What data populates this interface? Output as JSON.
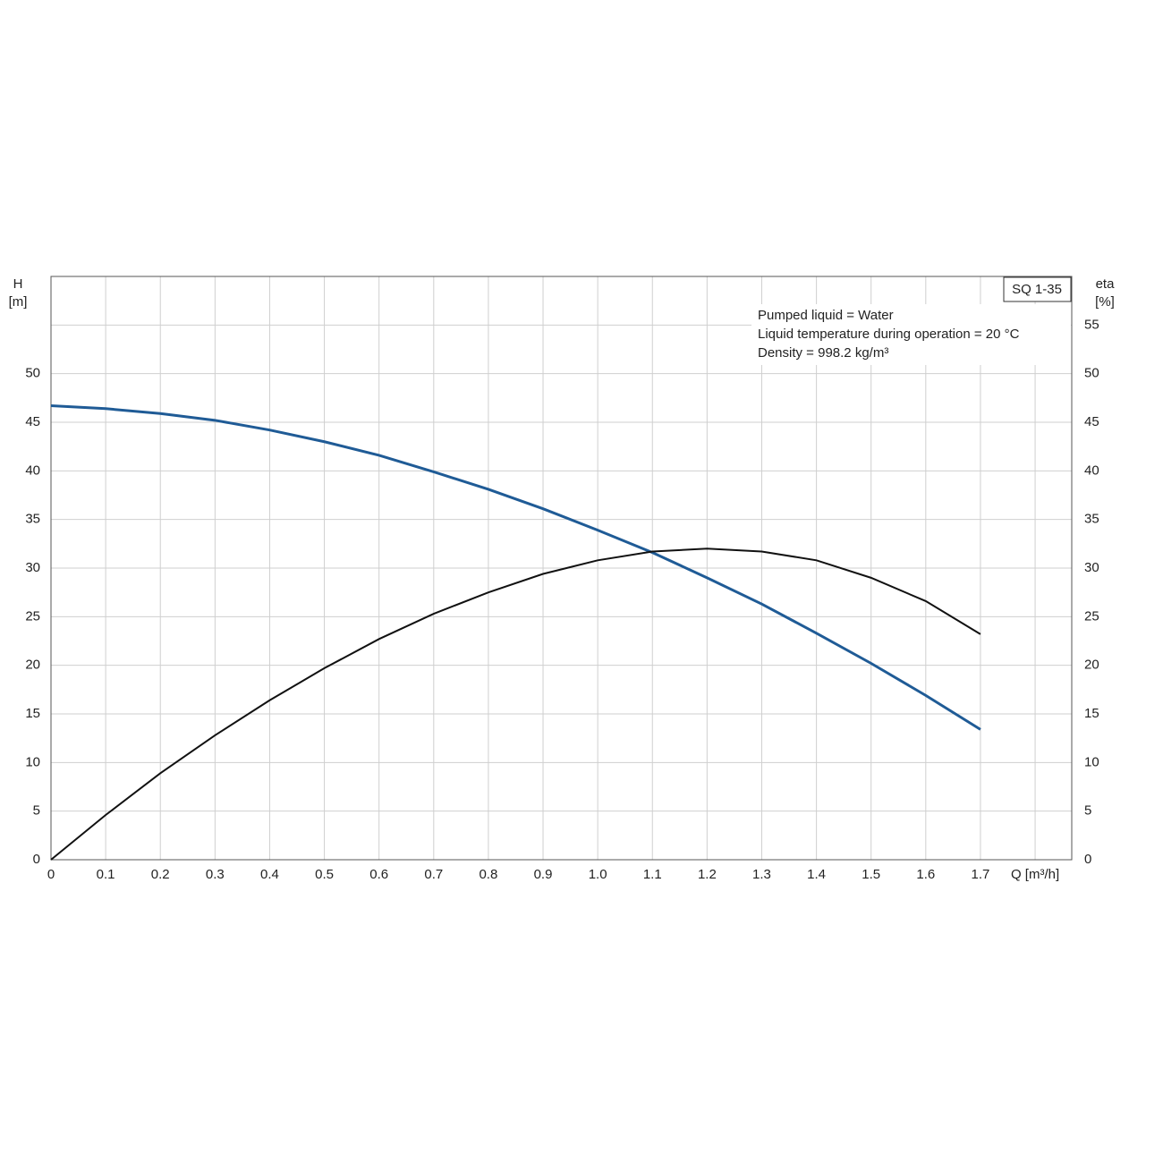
{
  "chart_data": {
    "type": "line",
    "y_label": "H",
    "y_unit": "[m]",
    "y2_label": "eta",
    "y2_unit": "[%]",
    "legend_box": "SQ 1-35",
    "annotations": [
      "Pumped liquid = Water",
      "Liquid temperature during operation = 20 °C",
      "Density = 998.2 kg/m³"
    ],
    "x": [
      0,
      0.1,
      0.2,
      0.3,
      0.4,
      0.5,
      0.6,
      0.7,
      0.8,
      0.9,
      1.0,
      1.1,
      1.2,
      1.3,
      1.4,
      1.5,
      1.6,
      1.7
    ],
    "series": [
      {
        "name": "H",
        "color": "#1f5b96",
        "axis": "y",
        "values": [
          46.7,
          46.4,
          45.9,
          45.2,
          44.2,
          43.0,
          41.6,
          39.9,
          38.1,
          36.1,
          33.9,
          31.6,
          29.0,
          26.3,
          23.3,
          20.2,
          16.9,
          13.4
        ]
      },
      {
        "name": "eta",
        "color": "#111111",
        "axis": "y2",
        "values": [
          0,
          4.6,
          8.9,
          12.8,
          16.4,
          19.7,
          22.7,
          25.3,
          27.5,
          29.4,
          30.8,
          31.7,
          32.0,
          31.7,
          30.8,
          29.0,
          26.6,
          23.2
        ]
      }
    ],
    "xlim": [
      0,
      1.867
    ],
    "xticks": [
      0,
      0.1,
      0.2,
      0.3,
      0.4,
      0.5,
      0.6,
      0.7,
      0.8,
      0.9,
      {
        "value": 1.0,
        "label": "1.0"
      },
      1.1,
      1.2,
      1.3,
      1.4,
      1.5,
      1.6,
      1.7,
      {
        "value": 1.8,
        "label": "Q [m³/h]"
      }
    ],
    "ylim": [
      0,
      60
    ],
    "yticks": [
      0,
      5,
      10,
      15,
      20,
      25,
      30,
      35,
      40,
      45,
      50
    ],
    "y2lim": [
      0,
      60
    ],
    "y2ticks": [
      0,
      5,
      10,
      15,
      20,
      25,
      30,
      35,
      40,
      45,
      50,
      55
    ],
    "grid": true
  }
}
